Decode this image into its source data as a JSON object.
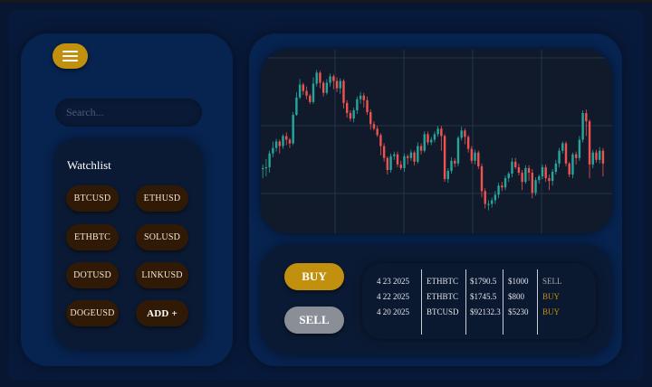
{
  "search": {
    "placeholder": "Search..."
  },
  "watchlist": {
    "title": "Watchlist",
    "items": [
      "BTCUSD",
      "ETHUSD",
      "ETHBTC",
      "SOLUSD",
      "DOTUSD",
      "LINKUSD",
      "DOGEUSD"
    ],
    "add_label": "ADD +"
  },
  "actions": {
    "buy_label": "BUY",
    "sell_label": "SELL"
  },
  "orders": {
    "rows": [
      {
        "date": "4 23 2025",
        "pair": "ETHBTC",
        "price": "$1790.5",
        "amount": "$1000",
        "side": "SELL"
      },
      {
        "date": "4 22 2025",
        "pair": "ETHBTC",
        "price": "$1745.5",
        "amount": "$800",
        "side": "BUY"
      },
      {
        "date": "4 20 2025",
        "pair": "BTCUSD",
        "price": "$92132.3",
        "amount": "$5230",
        "side": "BUY"
      }
    ]
  },
  "colors": {
    "accent": "#c2900f",
    "bullish": "#26a69a",
    "bearish": "#ef5350",
    "sell_text": "#a8a8ac"
  },
  "chart_data": {
    "type": "candlestick",
    "series": [
      {
        "values": [
          [
            70,
            71,
            60,
            75
          ],
          [
            71,
            72,
            62,
            81
          ],
          [
            72,
            87,
            66,
            90
          ],
          [
            87,
            93,
            83,
            100
          ],
          [
            93,
            100,
            89,
            103
          ],
          [
            100,
            95,
            87,
            102
          ],
          [
            95,
            106,
            92,
            108
          ],
          [
            106,
            102,
            96,
            110
          ],
          [
            102,
            98,
            93,
            104
          ],
          [
            98,
            129,
            96,
            132
          ],
          [
            129,
            148,
            128,
            154
          ],
          [
            148,
            162,
            146,
            168
          ],
          [
            162,
            155,
            151,
            164
          ],
          [
            155,
            150,
            146,
            160
          ],
          [
            150,
            143,
            141,
            152
          ],
          [
            143,
            163,
            141,
            170
          ],
          [
            163,
            175,
            160,
            178
          ],
          [
            175,
            164,
            158,
            177
          ],
          [
            164,
            153,
            149,
            166
          ],
          [
            153,
            164,
            151,
            168
          ],
          [
            164,
            171,
            160,
            174
          ],
          [
            171,
            166,
            157,
            173
          ],
          [
            166,
            158,
            154,
            170
          ],
          [
            158,
            166,
            152,
            169
          ],
          [
            166,
            142,
            136,
            168
          ],
          [
            142,
            131,
            126,
            145
          ],
          [
            131,
            125,
            122,
            134
          ],
          [
            125,
            134,
            121,
            137
          ],
          [
            134,
            146,
            130,
            149
          ],
          [
            146,
            150,
            141,
            154
          ],
          [
            150,
            145,
            137,
            153
          ],
          [
            145,
            132,
            129,
            149
          ],
          [
            132,
            119,
            113,
            135
          ],
          [
            119,
            114,
            112,
            122
          ],
          [
            114,
            107,
            105,
            117
          ],
          [
            107,
            95,
            85,
            109
          ],
          [
            95,
            82,
            78,
            98
          ],
          [
            82,
            69,
            64,
            84
          ],
          [
            69,
            84,
            66,
            87
          ],
          [
            84,
            86,
            80,
            89
          ],
          [
            86,
            75,
            72,
            89
          ],
          [
            75,
            71,
            69,
            79
          ],
          [
            71,
            84,
            67,
            87
          ],
          [
            84,
            82,
            75,
            86
          ],
          [
            82,
            88,
            79,
            91
          ],
          [
            88,
            78,
            74,
            90
          ],
          [
            78,
            95,
            76,
            99
          ],
          [
            95,
            90,
            86,
            98
          ],
          [
            90,
            108,
            88,
            111
          ],
          [
            108,
            99,
            96,
            111
          ],
          [
            99,
            102,
            96,
            105
          ],
          [
            102,
            108,
            99,
            111
          ],
          [
            108,
            114,
            105,
            117
          ],
          [
            114,
            106,
            90,
            117
          ],
          [
            106,
            59,
            56,
            108
          ],
          [
            59,
            68,
            55,
            71
          ],
          [
            68,
            79,
            65,
            83
          ],
          [
            79,
            76,
            72,
            82
          ],
          [
            76,
            104,
            73,
            106
          ],
          [
            104,
            112,
            101,
            116
          ],
          [
            112,
            105,
            97,
            114
          ],
          [
            105,
            92,
            88,
            107
          ],
          [
            92,
            79,
            76,
            95
          ],
          [
            79,
            88,
            75,
            91
          ],
          [
            88,
            73,
            70,
            90
          ],
          [
            73,
            46,
            39,
            76
          ],
          [
            46,
            32,
            27,
            49
          ],
          [
            32,
            32,
            25,
            36
          ],
          [
            32,
            36,
            28,
            39
          ],
          [
            36,
            42,
            32,
            46
          ],
          [
            42,
            52,
            38,
            55
          ],
          [
            52,
            50,
            46,
            56
          ],
          [
            50,
            60,
            47,
            63
          ],
          [
            60,
            65,
            56,
            67
          ],
          [
            65,
            78,
            61,
            82
          ],
          [
            78,
            72,
            70,
            82
          ],
          [
            72,
            66,
            63,
            76
          ],
          [
            66,
            56,
            47,
            69
          ],
          [
            56,
            71,
            54,
            74
          ],
          [
            71,
            66,
            57,
            74
          ],
          [
            66,
            44,
            38,
            70
          ],
          [
            44,
            58,
            41,
            61
          ],
          [
            58,
            62,
            54,
            64
          ],
          [
            62,
            72,
            59,
            75
          ],
          [
            72,
            60,
            56,
            75
          ],
          [
            60,
            57,
            47,
            64
          ],
          [
            57,
            67,
            52,
            70
          ],
          [
            67,
            76,
            64,
            80
          ],
          [
            76,
            90,
            72,
            93
          ],
          [
            90,
            98,
            87,
            100
          ],
          [
            98,
            76,
            73,
            100
          ],
          [
            76,
            64,
            61,
            78
          ],
          [
            64,
            86,
            60,
            88
          ],
          [
            86,
            82,
            75,
            89
          ],
          [
            82,
            102,
            79,
            106
          ],
          [
            102,
            131,
            99,
            134
          ],
          [
            131,
            122,
            106,
            135
          ],
          [
            122,
            75,
            60,
            124
          ],
          [
            75,
            88,
            71,
            91
          ],
          [
            88,
            80,
            77,
            91
          ],
          [
            80,
            90,
            76,
            94
          ],
          [
            90,
            76,
            62,
            93
          ]
        ]
      }
    ],
    "grid": true
  }
}
